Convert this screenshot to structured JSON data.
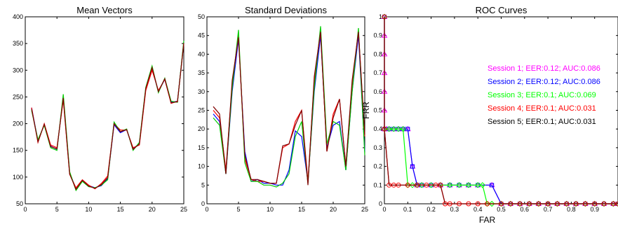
{
  "chart_data": [
    {
      "type": "line",
      "title": "Mean Vectors",
      "xlim": [
        0,
        25
      ],
      "ylim": [
        50,
        400
      ],
      "xticks": [
        0,
        5,
        10,
        15,
        20,
        25
      ],
      "yticks": [
        50,
        100,
        150,
        200,
        250,
        300,
        350,
        400
      ],
      "x": [
        1,
        2,
        3,
        4,
        5,
        6,
        7,
        8,
        9,
        10,
        11,
        12,
        13,
        14,
        15,
        16,
        17,
        18,
        19,
        20,
        21,
        22,
        23,
        24,
        25
      ],
      "series": [
        {
          "color": "#0000ff",
          "values": [
            230,
            168,
            198,
            158,
            152,
            250,
            108,
            78,
            93,
            84,
            80,
            84,
            97,
            198,
            183,
            189,
            153,
            163,
            265,
            303,
            260,
            283,
            240,
            242,
            352
          ]
        },
        {
          "color": "#ff0000",
          "values": [
            230,
            165,
            200,
            160,
            155,
            245,
            105,
            80,
            95,
            85,
            78,
            88,
            102,
            200,
            188,
            188,
            155,
            160,
            262,
            300,
            262,
            283,
            238,
            242,
            350
          ]
        },
        {
          "color": "#00cc00",
          "values": [
            225,
            170,
            197,
            155,
            150,
            255,
            110,
            75,
            92,
            82,
            80,
            85,
            95,
            203,
            185,
            190,
            150,
            165,
            268,
            308,
            258,
            285,
            242,
            240,
            355
          ]
        },
        {
          "color": "#7f0000",
          "values": [
            228,
            166,
            199,
            157,
            153,
            248,
            106,
            77,
            94,
            83,
            79,
            86,
            99,
            200,
            185,
            189,
            152,
            162,
            266,
            305,
            260,
            284,
            239,
            241,
            351
          ]
        }
      ]
    },
    {
      "type": "line",
      "title": "Standard Deviations",
      "xlim": [
        0,
        25
      ],
      "ylim": [
        0,
        50
      ],
      "xticks": [
        0,
        5,
        10,
        15,
        20,
        25
      ],
      "yticks": [
        0,
        5,
        10,
        15,
        20,
        25,
        30,
        35,
        40,
        45,
        50
      ],
      "x": [
        1,
        2,
        3,
        4,
        5,
        6,
        7,
        8,
        9,
        10,
        11,
        12,
        13,
        14,
        15,
        16,
        17,
        18,
        19,
        20,
        21,
        22,
        23,
        24,
        25
      ],
      "series": [
        {
          "color": "#0000ff",
          "values": [
            24,
            22,
            8,
            30,
            44,
            14,
            6,
            6.5,
            5.5,
            5.5,
            5,
            5,
            9,
            19.5,
            18,
            6,
            30,
            45,
            15,
            21,
            22,
            9,
            30,
            45,
            14
          ]
        },
        {
          "color": "#ff0000",
          "values": [
            25,
            23,
            9,
            32,
            45,
            12,
            6.5,
            6,
            6,
            5.5,
            5.5,
            15,
            16,
            22,
            25,
            6,
            33,
            46,
            14,
            24,
            28,
            10,
            32,
            46,
            18
          ]
        },
        {
          "color": "#00cc00",
          "values": [
            23,
            21,
            8,
            31,
            46.5,
            11,
            6,
            6,
            5,
            5,
            4.5,
            5.5,
            8,
            18,
            22,
            5.5,
            31,
            47.5,
            16,
            22,
            21,
            9,
            30,
            47,
            13
          ]
        },
        {
          "color": "#7f0000",
          "values": [
            26,
            24,
            8,
            33,
            44.5,
            13,
            6.5,
            6.5,
            6,
            5.5,
            5.5,
            15.5,
            16,
            21,
            25,
            5,
            34,
            46,
            14,
            23,
            28,
            10,
            33,
            46,
            18.5
          ]
        }
      ]
    },
    {
      "type": "line",
      "title": "ROC Curves",
      "xlabel": "FAR",
      "ylabel": "FRR",
      "xlim": [
        0,
        1
      ],
      "ylim": [
        0,
        1
      ],
      "xticks": [
        0,
        0.1,
        0.2,
        0.3,
        0.4,
        0.5,
        0.6,
        0.7,
        0.8,
        0.9
      ],
      "xtick_labels": [
        "0",
        "0.1",
        "0.2",
        "0.3",
        "0.4",
        "0.5",
        "0.6",
        "0.7",
        "0.8",
        "0.9"
      ],
      "yticks": [
        0,
        0.1,
        0.2,
        0.3,
        0.4,
        0.5,
        0.6,
        0.7,
        0.8,
        0.9,
        1
      ],
      "ytick_labels": [
        "0",
        "0.1",
        "0.2",
        "0.3",
        "0.4",
        "0.5",
        "0.6",
        "0.7",
        "0.8",
        "0.9",
        "1"
      ],
      "legend_position": "right",
      "series": [
        {
          "name": "Session 1;  EER:0.12;  AUC:0.086",
          "color": "#ff00ff",
          "marker": "triangle",
          "x": [
            0,
            0,
            0,
            0,
            0,
            0,
            0,
            0.01,
            0.02,
            0.04,
            0.06,
            0.08,
            0.1,
            0.12,
            0.14,
            0.16,
            0.2,
            0.24,
            0.28,
            0.32,
            0.36,
            0.4,
            0.46,
            0.5,
            0.54,
            0.58,
            0.62,
            0.66,
            0.7,
            0.74,
            0.78,
            0.82,
            0.86,
            0.9,
            0.94,
            0.98,
            1
          ],
          "y": [
            1,
            0.9,
            0.8,
            0.7,
            0.6,
            0.5,
            0.4,
            0.4,
            0.4,
            0.4,
            0.4,
            0.4,
            0.4,
            0.2,
            0.1,
            0.1,
            0.1,
            0.1,
            0.1,
            0.1,
            0.1,
            0.1,
            0.1,
            0,
            0,
            0,
            0,
            0,
            0,
            0,
            0,
            0,
            0,
            0,
            0,
            0,
            0
          ]
        },
        {
          "name": "Session 2;  EER:0.12;  AUC:0.086",
          "color": "#0000ff",
          "marker": "square",
          "x": [
            0,
            0,
            0.02,
            0.04,
            0.06,
            0.08,
            0.1,
            0.12,
            0.14,
            0.16,
            0.2,
            0.24,
            0.28,
            0.32,
            0.36,
            0.4,
            0.46,
            0.5,
            0.54,
            0.58,
            0.62,
            0.66,
            0.7,
            0.74,
            0.78,
            0.82,
            0.86,
            0.9,
            0.94,
            0.98,
            1
          ],
          "y": [
            1,
            0.4,
            0.4,
            0.4,
            0.4,
            0.4,
            0.4,
            0.2,
            0.1,
            0.1,
            0.1,
            0.1,
            0.1,
            0.1,
            0.1,
            0.1,
            0.1,
            0,
            0,
            0,
            0,
            0,
            0,
            0,
            0,
            0,
            0,
            0,
            0,
            0,
            0
          ]
        },
        {
          "name": "Session 3;  EER:0.1;  AUC:0.069",
          "color": "#00ff00",
          "marker": "diamond",
          "x": [
            0,
            0,
            0.02,
            0.04,
            0.06,
            0.08,
            0.1,
            0.12,
            0.14,
            0.16,
            0.2,
            0.24,
            0.28,
            0.32,
            0.36,
            0.4,
            0.42,
            0.44,
            0.46,
            0.5,
            0.54,
            0.58,
            0.62,
            0.66,
            0.7,
            0.74,
            0.78,
            0.82,
            0.86,
            0.9,
            0.94,
            0.98,
            1
          ],
          "y": [
            1,
            0.4,
            0.4,
            0.4,
            0.4,
            0.4,
            0.1,
            0.1,
            0.1,
            0.1,
            0.1,
            0.1,
            0.1,
            0.1,
            0.1,
            0.1,
            0.1,
            0,
            0,
            0,
            0,
            0,
            0,
            0,
            0,
            0,
            0,
            0,
            0,
            0,
            0,
            0,
            0
          ]
        },
        {
          "name": "Session 4;  EER:0.1;  AUC:0.031",
          "color": "#ff0000",
          "marker": "circle",
          "x": [
            0,
            0,
            0.02,
            0.04,
            0.06,
            0.1,
            0.14,
            0.18,
            0.22,
            0.24,
            0.26,
            0.28,
            0.32,
            0.36,
            0.4,
            0.44,
            0.5,
            0.54,
            0.58,
            0.62,
            0.66,
            0.7,
            0.74,
            0.78,
            0.82,
            0.86,
            0.9,
            0.94,
            0.98,
            1
          ],
          "y": [
            1,
            0.4,
            0.1,
            0.1,
            0.1,
            0.1,
            0.1,
            0.1,
            0.1,
            0.1,
            0,
            0,
            0,
            0,
            0,
            0,
            0,
            0,
            0,
            0,
            0,
            0,
            0,
            0,
            0,
            0,
            0,
            0,
            0,
            0
          ]
        },
        {
          "name": "Session 5;  EER:0.1;  AUC:0.031",
          "color": "#7f0000",
          "marker": "none",
          "x": [
            0,
            0,
            0.02,
            0.1,
            0.2,
            0.24,
            0.26,
            0.3,
            0.4,
            0.5,
            0.6,
            0.7,
            0.8,
            0.9,
            1
          ],
          "y": [
            1,
            0.4,
            0.1,
            0.1,
            0.1,
            0.1,
            0,
            0,
            0,
            0,
            0,
            0,
            0,
            0,
            0
          ]
        }
      ]
    }
  ]
}
